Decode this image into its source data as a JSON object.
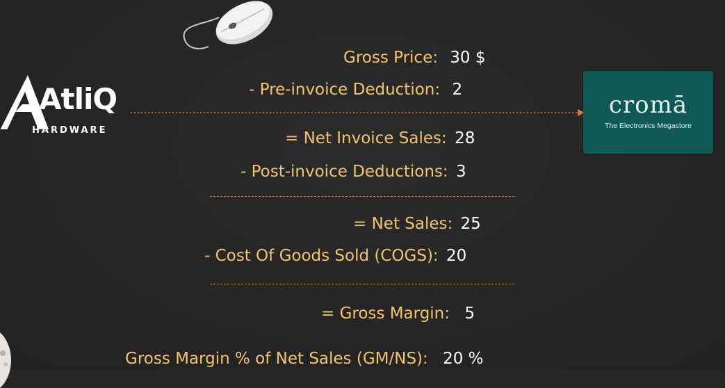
{
  "logos": {
    "left_brand": "AtliQ",
    "left_brand_tag": "HARDWARE",
    "right_brand": "cromā",
    "right_brand_tag": "The Electronics Megastore"
  },
  "lines": {
    "gross_price": {
      "label": "Gross Price:",
      "value": "30  $"
    },
    "pre_invoice": {
      "label": "- Pre-invoice Deduction:",
      "value": "2"
    },
    "net_invoice": {
      "label": "= Net Invoice Sales:",
      "value": "28"
    },
    "post_invoice": {
      "label": "- Post-invoice Deductions:",
      "value": "3"
    },
    "net_sales": {
      "label": "= Net Sales:",
      "value": "25"
    },
    "cogs": {
      "label": "- Cost Of Goods Sold (COGS):",
      "value": "20"
    },
    "gross_margin": {
      "label": "= Gross Margin:",
      "value": "5"
    },
    "gm_pct": {
      "label": "Gross Margin % of Net Sales (GM/NS):",
      "value": "20 %"
    }
  },
  "colors": {
    "label": "#f2c46a",
    "value": "#ffffff",
    "divider": "#e0753a",
    "croma_bg": "#0e5955",
    "background": "#262626"
  }
}
